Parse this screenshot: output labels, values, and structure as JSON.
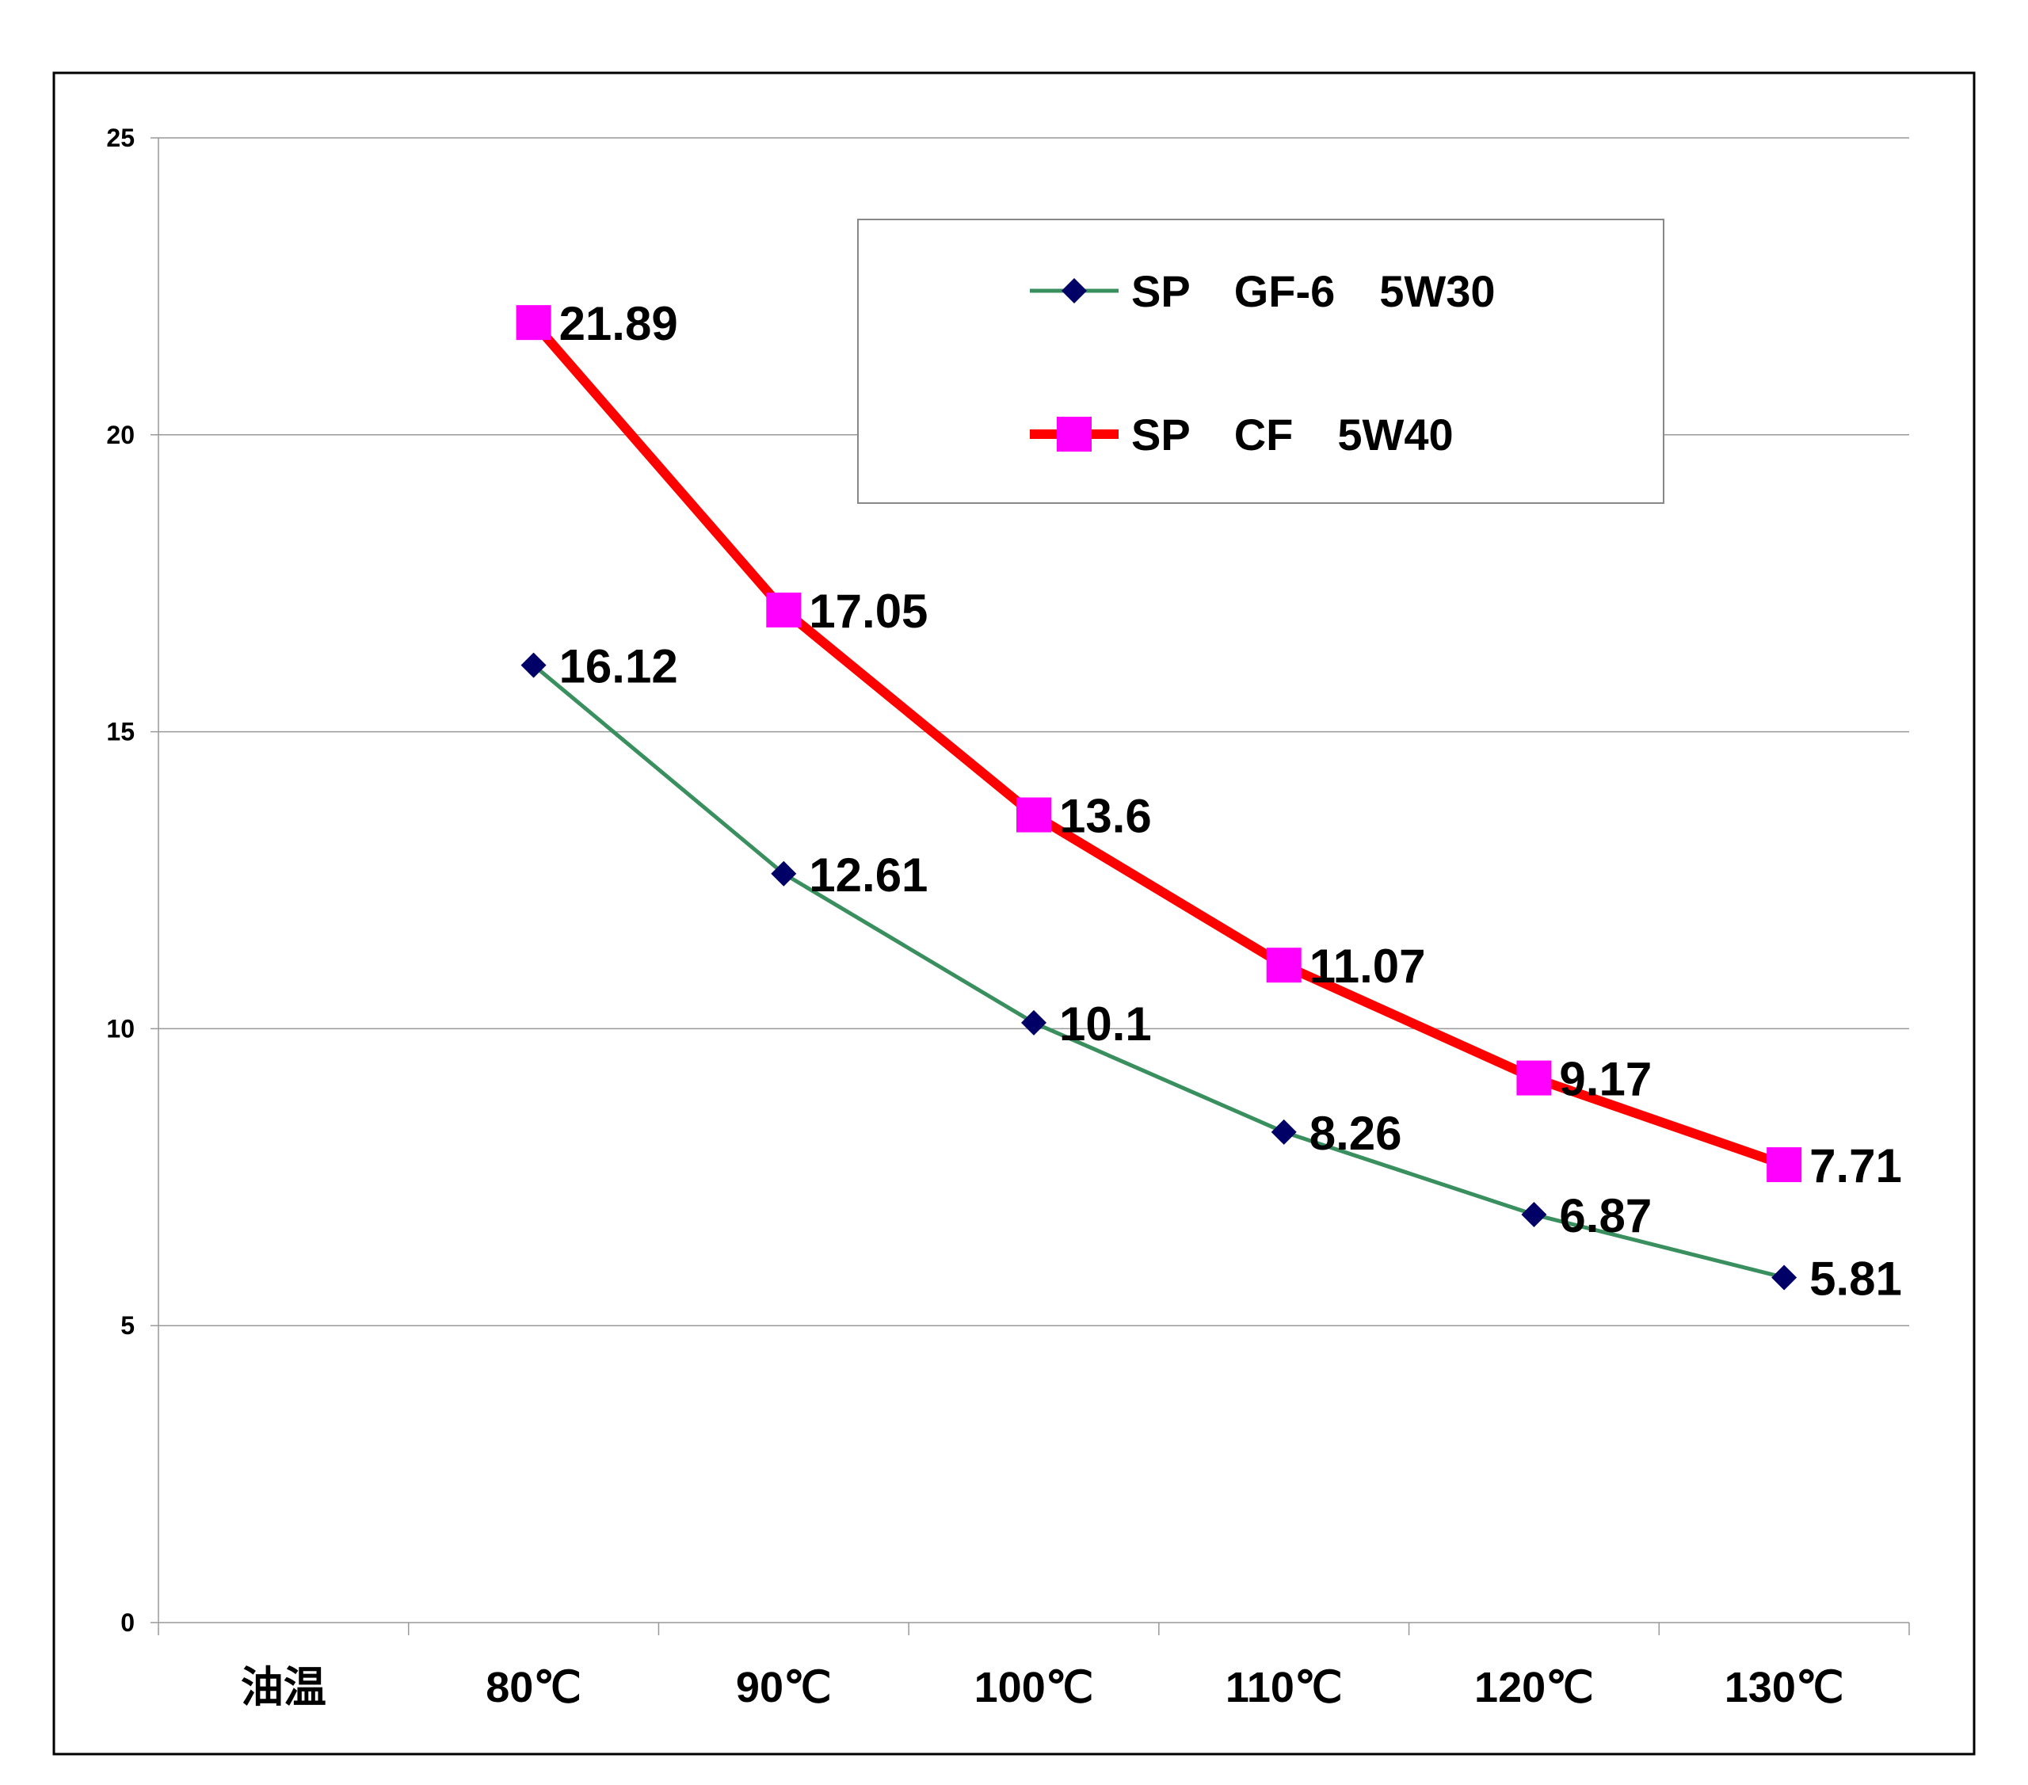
{
  "chart_data": {
    "type": "line",
    "title": "",
    "xlabel": "",
    "ylabel": "",
    "categories": [
      "油温",
      "80℃",
      "90℃",
      "100℃",
      "110℃",
      "120℃",
      "130℃"
    ],
    "ylim": [
      0,
      25
    ],
    "yticks": [
      0,
      5,
      10,
      15,
      20,
      25
    ],
    "grid": true,
    "legend_position": "top-right",
    "series": [
      {
        "name": "SP　GF-6　5W30",
        "color": "#3A8F5F",
        "marker": "diamond",
        "marker_color": "#000066",
        "values": [
          null,
          16.12,
          12.61,
          10.1,
          8.26,
          6.87,
          5.81
        ],
        "labels": [
          "",
          "16.12",
          "12.61",
          "10.1",
          "8.26",
          "6.87",
          "5.81"
        ]
      },
      {
        "name": "SP　CF　5W40",
        "color": "#FF0000",
        "marker": "square",
        "marker_color": "#FF00FF",
        "values": [
          null,
          21.89,
          17.05,
          13.6,
          11.07,
          9.17,
          7.71
        ],
        "labels": [
          "",
          "21.89",
          "17.05",
          "13.6",
          "11.07",
          "9.17",
          "7.71"
        ]
      }
    ]
  }
}
